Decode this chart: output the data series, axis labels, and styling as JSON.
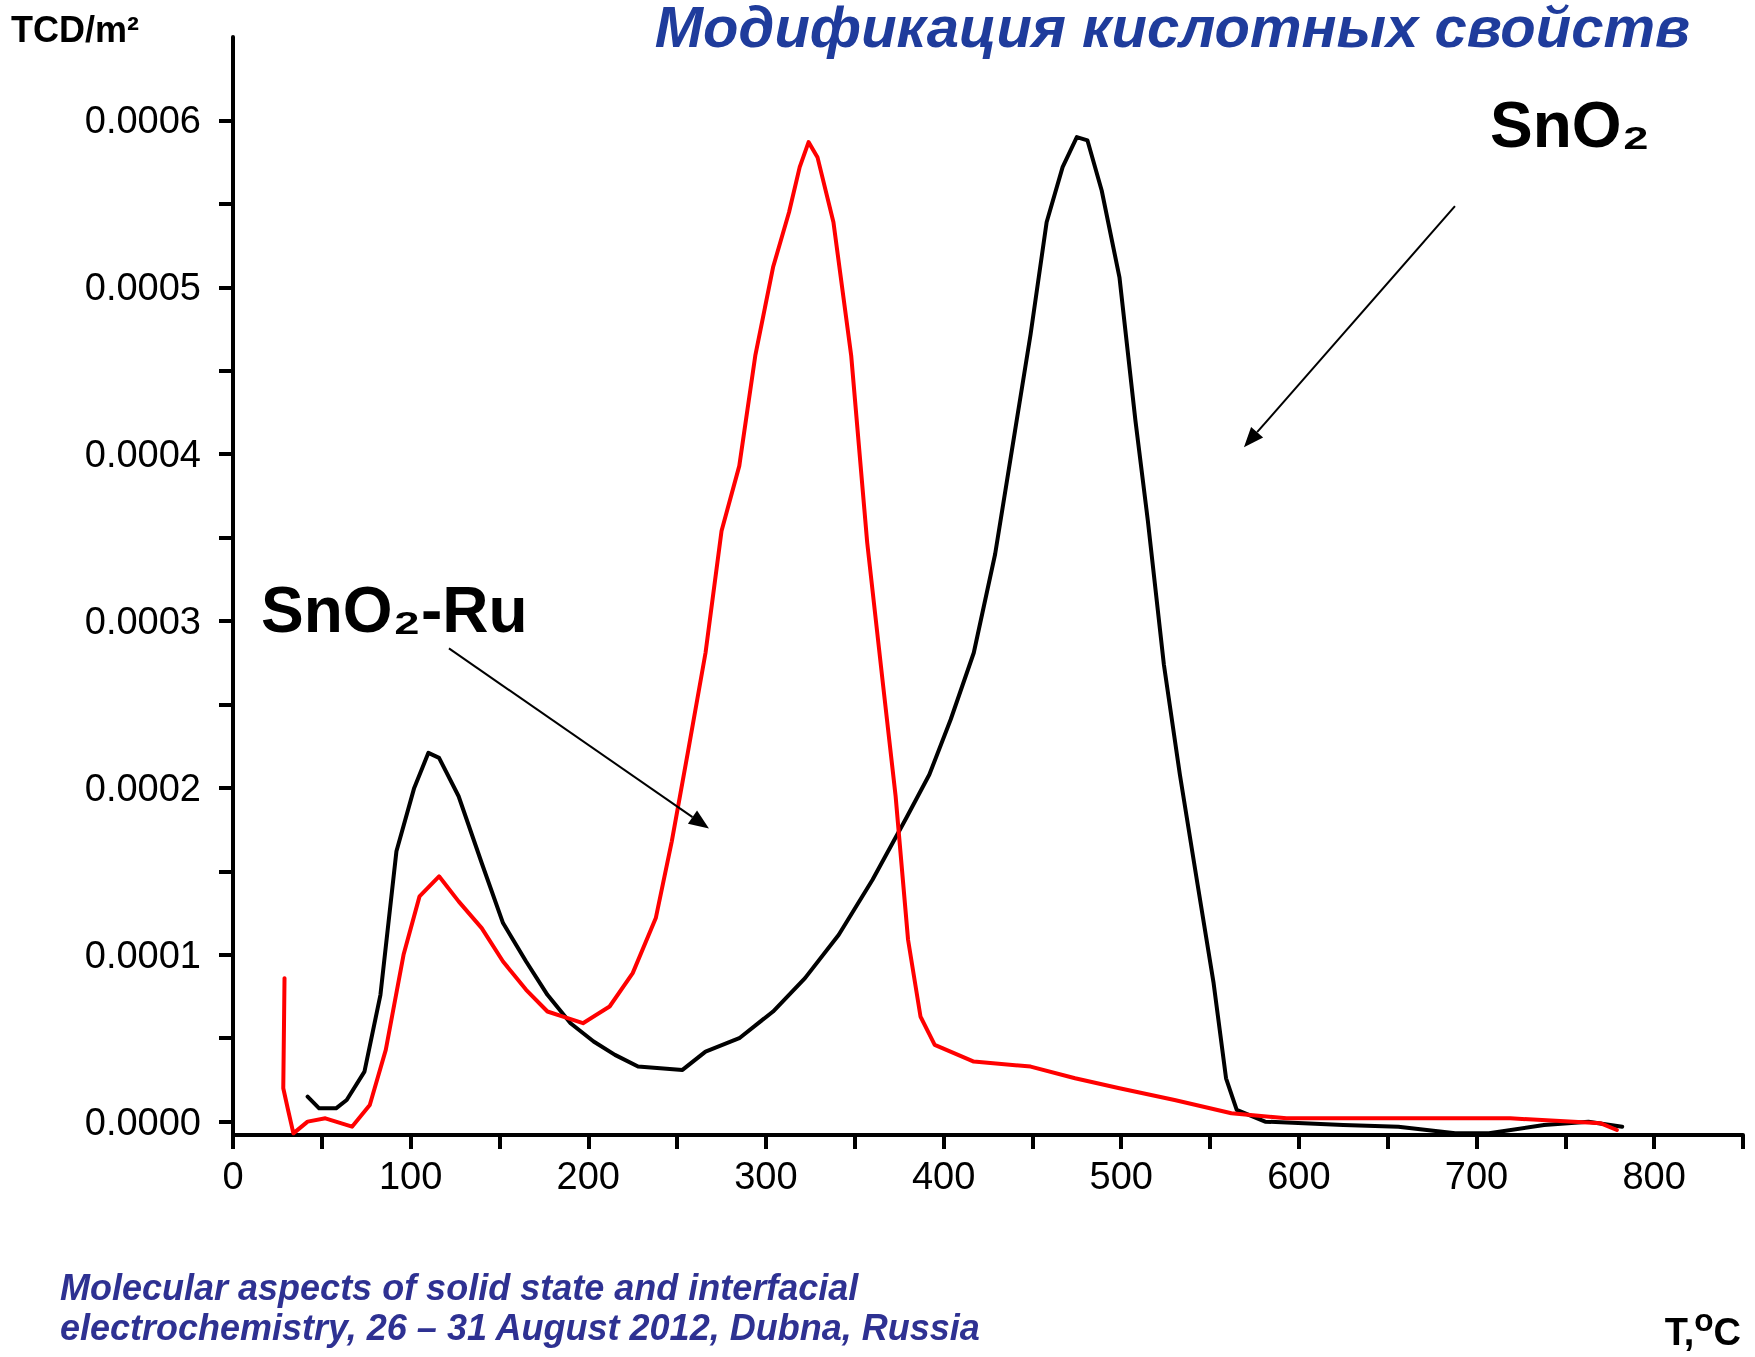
{
  "chart_data": {
    "type": "line",
    "title": "Модификация кислотных свойств",
    "xlabel": "T,$^{o}$C",
    "ylabel": "TCD/m²",
    "annotations": [
      "SnO₂",
      "SnO₂-Ru",
      "Molecular aspects of solid state and interfacial electrochemistry, 26 – 31 August 2012, Dubna, Russia"
    ],
    "xlim": [
      0,
      850
    ],
    "xticks": [
      0,
      {
        "value": 50,
        "label": null
      },
      100,
      {
        "value": 150,
        "label": null
      },
      200,
      {
        "value": 250,
        "label": null
      },
      300,
      {
        "value": 350,
        "label": null
      },
      400,
      {
        "value": 450,
        "label": null
      },
      500,
      {
        "value": 550,
        "label": null
      },
      600,
      {
        "value": 650,
        "label": null
      },
      700,
      {
        "value": 750,
        "label": null
      },
      800,
      {
        "value": 850,
        "label": null
      }
    ],
    "ylim": [
      -8e-06,
      0.00065
    ],
    "yticks": [
      {
        "value": 0,
        "label": "0.0000"
      },
      {
        "value": 5e-05,
        "label": null
      },
      {
        "value": 0.0001,
        "label": "0.0001"
      },
      {
        "value": 0.00015,
        "label": null
      },
      {
        "value": 0.0002,
        "label": "0.0002"
      },
      {
        "value": 0.00025,
        "label": null
      },
      {
        "value": 0.0003,
        "label": "0.0003"
      },
      {
        "value": 0.00035,
        "label": null
      },
      {
        "value": 0.0004,
        "label": "0.0004"
      },
      {
        "value": 0.00045,
        "label": null
      },
      {
        "value": 0.0005,
        "label": "0.0005"
      },
      {
        "value": 0.00055,
        "label": null
      },
      {
        "value": 0.0006,
        "label": "0.0006"
      }
    ],
    "grid": false,
    "marker": "none",
    "line_style": "solid",
    "series": [
      {
        "color": "#000000",
        "x": [
          42,
          48.5,
          58,
          64,
          74,
          83,
          92,
          102,
          110,
          116,
          127,
          140,
          152,
          165,
          177,
          190,
          203,
          215,
          228,
          253,
          266,
          285,
          304,
          322,
          341,
          360,
          379,
          392,
          404,
          417,
          429,
          439,
          449,
          458,
          467,
          475,
          481,
          489,
          499,
          508,
          515,
          524,
          533,
          543,
          552,
          559,
          565,
          581,
          625,
          656,
          688,
          707,
          738,
          763,
          782
        ],
        "values": [
          1.5e-05,
          8e-06,
          8e-06,
          1.3e-05,
          3e-05,
          7.6e-05,
          0.000162,
          0.0002,
          0.000221,
          0.000218,
          0.000195,
          0.000155,
          0.000119,
          9.6e-05,
          7.6e-05,
          5.9e-05,
          4.8e-05,
          4e-05,
          3.3e-05,
          3.1e-05,
          4.2e-05,
          5e-05,
          6.6e-05,
          8.6e-05,
          0.000112,
          0.000145,
          0.000182,
          0.000208,
          0.000241,
          0.000281,
          0.00034,
          0.000406,
          0.000472,
          0.000539,
          0.000572,
          0.00059,
          0.000588,
          0.000558,
          0.000506,
          0.00042,
          0.00036,
          0.000274,
          0.000208,
          0.000142,
          8.3e-05,
          2.6e-05,
          7e-06,
          0,
          -2e-06,
          -3e-06,
          -7e-06,
          -7e-06,
          -2e-06,
          0,
          -3e-06
        ]
      },
      {
        "color": "#ff0000",
        "x": [
          29,
          28.3,
          31,
          34,
          42,
          52,
          67,
          77,
          86,
          96,
          105,
          116,
          127,
          140,
          152,
          165,
          177,
          197,
          212,
          225,
          238,
          247,
          256,
          266,
          275,
          285,
          294,
          304,
          313,
          319,
          324,
          329,
          338,
          348,
          357,
          366,
          373,
          380,
          387,
          395,
          417,
          449,
          474,
          499,
          530,
          562,
          593,
          656,
          719,
          770,
          779
        ],
        "values": [
          8.6e-05,
          2e-05,
          7e-06,
          -7e-06,
          0,
          2e-06,
          -3e-06,
          1e-05,
          4.3e-05,
          0.0001,
          0.000135,
          0.000147,
          0.000132,
          0.000116,
          9.6e-05,
          7.9e-05,
          6.6e-05,
          5.9e-05,
          6.9e-05,
          8.9e-05,
          0.000122,
          0.000168,
          0.000221,
          0.000281,
          0.000354,
          0.000393,
          0.000459,
          0.000512,
          0.000545,
          0.000572,
          0.000587,
          0.000578,
          0.000539,
          0.000459,
          0.000347,
          0.000261,
          0.000195,
          0.000109,
          6.3e-05,
          4.6e-05,
          3.6e-05,
          3.3e-05,
          2.6e-05,
          2e-05,
          1.3e-05,
          5e-06,
          2e-06,
          2e-06,
          2e-06,
          -1e-06,
          -5e-06
        ]
      }
    ]
  }
}
